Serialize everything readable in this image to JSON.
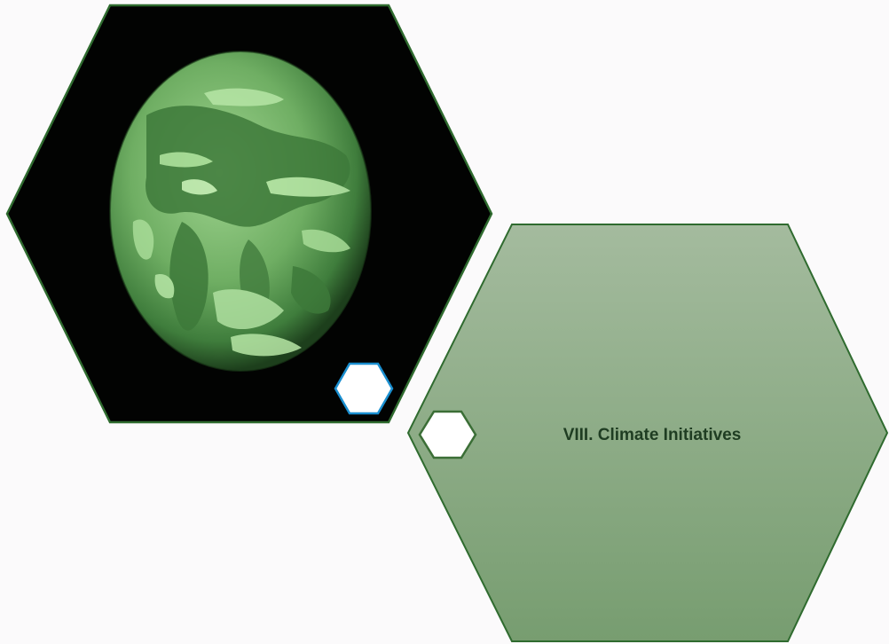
{
  "slide": {
    "section_title": "VIII. Climate Initiatives",
    "image_subject": "earth-globe-green-tint"
  },
  "colors": {
    "background": "#fbfafb",
    "hexagon_outline": "#2f6b2f",
    "image_backdrop": "#020302",
    "panel_fill_top": "#a4bb9e",
    "panel_fill_bottom": "#779d70",
    "badge_blue_outline": "#1a8fd0",
    "badge_green_outline": "#3b6e36",
    "badge_fill": "#ffffff",
    "title_text": "#1f3d22"
  }
}
